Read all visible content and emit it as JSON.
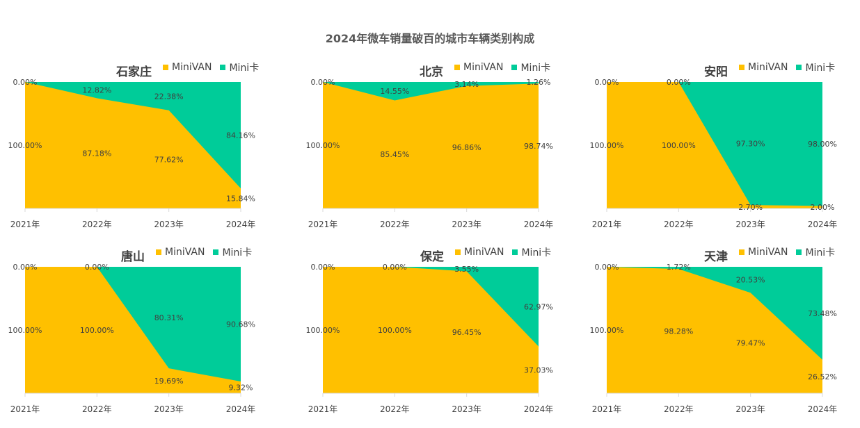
{
  "title": "2024年微车销量破百的城市车辆类别构成",
  "colors": {
    "minivan": "#FFC000",
    "minika": "#00CC99"
  },
  "legend": [
    "MiniVAN",
    "Mini卡"
  ],
  "chart_data": [
    {
      "type": "area",
      "title": "石家庄",
      "categories": [
        "2021年",
        "2022年",
        "2023年",
        "2024年"
      ],
      "series": [
        {
          "name": "MiniVAN",
          "values": [
            100.0,
            87.18,
            77.62,
            15.84
          ]
        },
        {
          "name": "Mini卡",
          "values": [
            0.0,
            12.82,
            22.38,
            84.16
          ]
        }
      ],
      "labels": {
        "minivan": [
          "100.00%",
          "87.18%",
          "77.62%",
          "15.84%"
        ],
        "minika": [
          "0.00%",
          "12.82%",
          "22.38%",
          "84.16%"
        ]
      }
    },
    {
      "type": "area",
      "title": "北京",
      "categories": [
        "2021年",
        "2022年",
        "2023年",
        "2024年"
      ],
      "series": [
        {
          "name": "MiniVAN",
          "values": [
            100.0,
            85.45,
            96.86,
            98.74
          ]
        },
        {
          "name": "Mini卡",
          "values": [
            0.0,
            14.55,
            3.14,
            1.26
          ]
        }
      ],
      "labels": {
        "minivan": [
          "100.00%",
          "85.45%",
          "96.86%",
          "98.74%"
        ],
        "minika": [
          "0.00%",
          "14.55%",
          "3.14%",
          "1.26%"
        ]
      }
    },
    {
      "type": "area",
      "title": "安阳",
      "categories": [
        "2021年",
        "2022年",
        "2023年",
        "2024年"
      ],
      "series": [
        {
          "name": "MiniVAN",
          "values": [
            100.0,
            100.0,
            2.7,
            2.0
          ]
        },
        {
          "name": "Mini卡",
          "values": [
            0.0,
            0.0,
            97.3,
            98.0
          ]
        }
      ],
      "labels": {
        "minivan": [
          "100.00%",
          "100.00%",
          "2.70%",
          "2.00%"
        ],
        "minika": [
          "0.00%",
          "0.00%",
          "97.30%",
          "98.00%"
        ]
      }
    },
    {
      "type": "area",
      "title": "唐山",
      "categories": [
        "2021年",
        "2022年",
        "2023年",
        "2024年"
      ],
      "series": [
        {
          "name": "MiniVAN",
          "values": [
            100.0,
            100.0,
            19.69,
            9.32
          ]
        },
        {
          "name": "Mini卡",
          "values": [
            0.0,
            0.0,
            80.31,
            90.68
          ]
        }
      ],
      "labels": {
        "minivan": [
          "100.00%",
          "100.00%",
          "19.69%",
          "9.32%"
        ],
        "minika": [
          "0.00%",
          "0.00%",
          "80.31%",
          "90.68%"
        ]
      }
    },
    {
      "type": "area",
      "title": "保定",
      "categories": [
        "2021年",
        "2022年",
        "2023年",
        "2024年"
      ],
      "series": [
        {
          "name": "MiniVAN",
          "values": [
            100.0,
            100.0,
            96.45,
            37.03
          ]
        },
        {
          "name": "Mini卡",
          "values": [
            0.0,
            0.0,
            3.55,
            62.97
          ]
        }
      ],
      "labels": {
        "minivan": [
          "100.00%",
          "100.00%",
          "96.45%",
          "37.03%"
        ],
        "minika": [
          "0.00%",
          "0.00%",
          "3.55%",
          "62.97%"
        ]
      }
    },
    {
      "type": "area",
      "title": "天津",
      "categories": [
        "2021年",
        "2022年",
        "2023年",
        "2024年"
      ],
      "series": [
        {
          "name": "MiniVAN",
          "values": [
            100.0,
            98.28,
            79.47,
            26.52
          ]
        },
        {
          "name": "Mini卡",
          "values": [
            0.0,
            1.72,
            20.53,
            73.48
          ]
        }
      ],
      "labels": {
        "minivan": [
          "100.00%",
          "98.28%",
          "79.47%",
          "26.52%"
        ],
        "minika": [
          "0.00%",
          "1.72%",
          "20.53%",
          "73.48%"
        ]
      }
    }
  ]
}
